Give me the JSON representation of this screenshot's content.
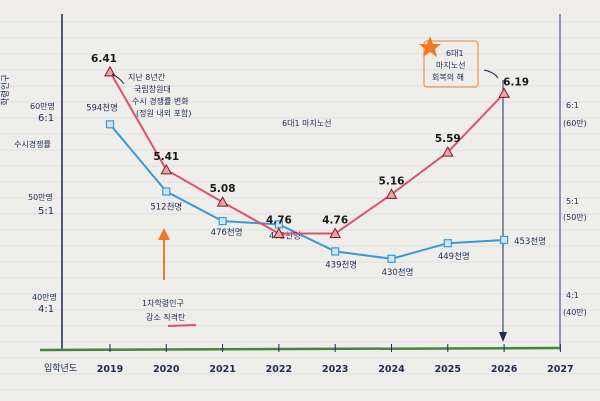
{
  "chart_data": {
    "type": "line",
    "x": [
      "2019",
      "2020",
      "2021",
      "2022",
      "2023",
      "2024",
      "2025",
      "2026"
    ],
    "x_ticks": [
      "2019",
      "2020",
      "2021",
      "2022",
      "2023",
      "2024",
      "2025",
      "2026",
      "2027"
    ],
    "xlabel": "입학년도",
    "left_axis": {
      "title": "학령인구",
      "labels": [
        {
          "top": "60만명",
          "bottom": "6:1"
        },
        {
          "top": "50만명",
          "bottom": "5:1"
        },
        {
          "top": "40만명",
          "bottom": "4:1"
        }
      ],
      "subtitle": "수시경쟁률"
    },
    "right_axis": {
      "labels": [
        {
          "top": "6:1",
          "bottom": "(60만)"
        },
        {
          "top": "5:1",
          "bottom": "(50만)"
        },
        {
          "top": "4:1",
          "bottom": "(40만)"
        }
      ]
    },
    "series": [
      {
        "key": "competition",
        "color": "#e0506a",
        "points": [
          {
            "x": "2019",
            "y": 6.41,
            "label": "6.41"
          },
          {
            "x": "2020",
            "y": 5.41,
            "label": "5.41"
          },
          {
            "x": "2021",
            "y": 5.08,
            "label": "5.08"
          },
          {
            "x": "2022",
            "y": 4.76,
            "label": "4.76"
          },
          {
            "x": "2023",
            "y": 4.76,
            "label": "4.76"
          },
          {
            "x": "2024",
            "y": 5.16,
            "label": "5.16"
          },
          {
            "x": "2025",
            "y": 5.59,
            "label": "5.59"
          },
          {
            "x": "2026",
            "y": 6.19,
            "label": "6.19"
          }
        ]
      },
      {
        "key": "population",
        "color": "#3a98d8",
        "points": [
          {
            "x": "2019",
            "y": 59.4,
            "label": "594천명"
          },
          {
            "x": "2020",
            "y": 51.2,
            "label": "512천명"
          },
          {
            "x": "2021",
            "y": 47.6,
            "label": "476천명"
          },
          {
            "x": "2022",
            "y": 47.2,
            "label": "472천명"
          },
          {
            "x": "2023",
            "y": 43.9,
            "label": "439천명"
          },
          {
            "x": "2024",
            "y": 43.0,
            "label": "430천명"
          },
          {
            "x": "2025",
            "y": 44.9,
            "label": "449천명"
          },
          {
            "x": "2026",
            "y": 45.3,
            "label": "453천명"
          }
        ]
      }
    ],
    "annotations": {
      "top_note": [
        "지난 8년간",
        "국립창원대",
        "수시 경쟁률 변화",
        "(정원 내외 포함)"
      ],
      "mid_note": "6대1 마지노선",
      "bottom_note": [
        "1차학령인구",
        "감소 직격탄"
      ],
      "star_note": [
        "6대1",
        "마지노선",
        "회복의 해"
      ]
    },
    "colors": {
      "competition": "#e0506a",
      "population": "#3a98d8",
      "baseline": "#3f8a3a",
      "arrow": "#f07a26",
      "highlight": "#f4a36a"
    }
  }
}
